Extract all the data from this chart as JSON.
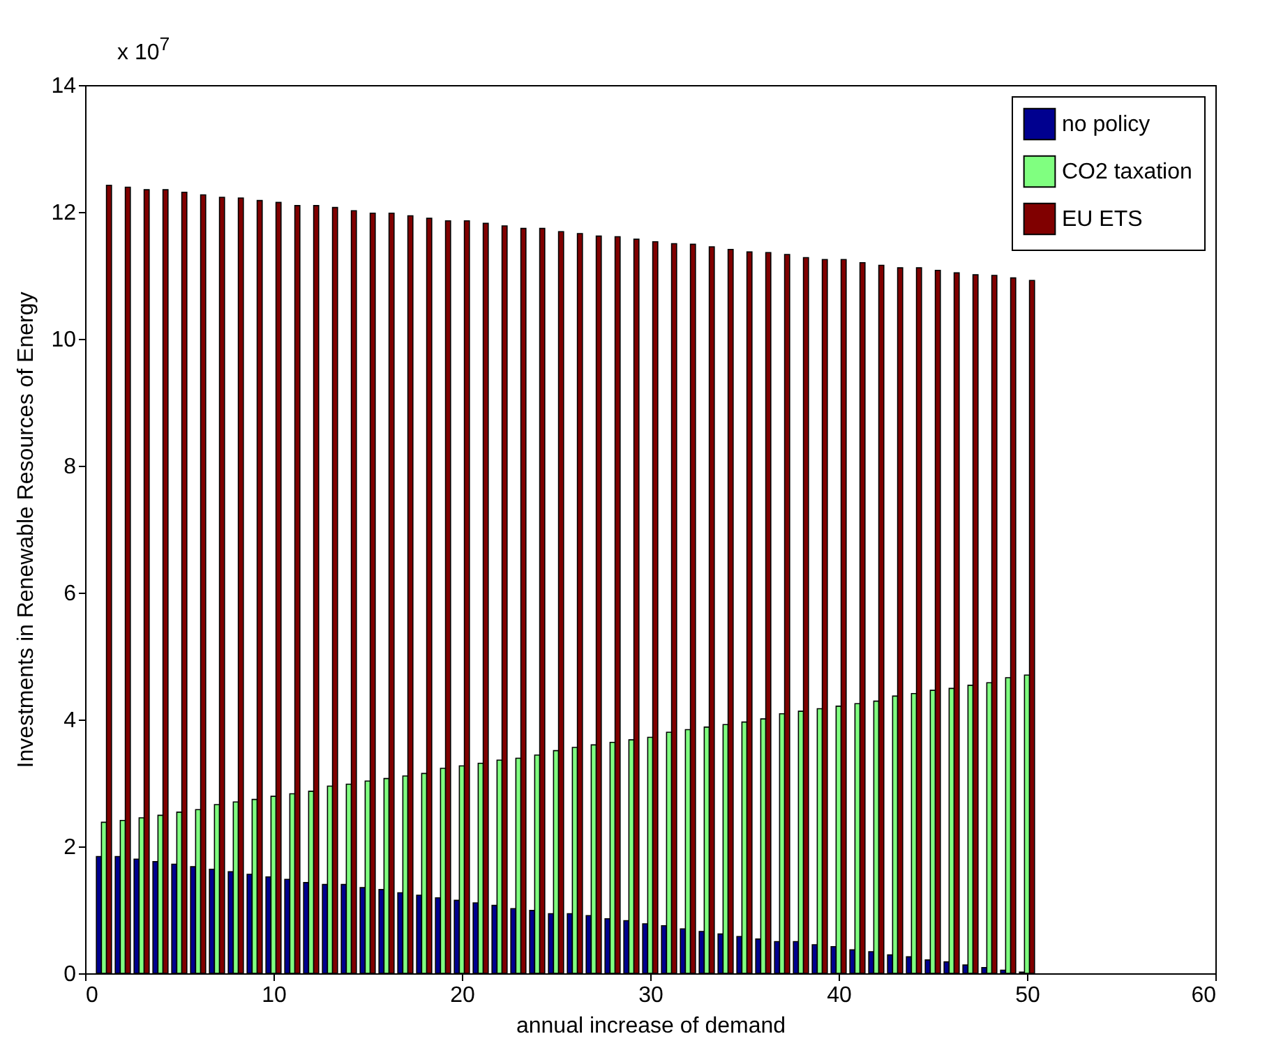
{
  "chart_data": {
    "type": "bar",
    "xlabel": "annual increase of demand",
    "ylabel": "Investments in Renewable Resources of Energy",
    "annotations": [
      "x 10$^{7}$"
    ],
    "x": [
      1,
      2,
      3,
      4,
      5,
      6,
      7,
      8,
      9,
      10,
      11,
      12,
      13,
      14,
      15,
      16,
      17,
      18,
      19,
      20,
      21,
      22,
      23,
      24,
      25,
      26,
      27,
      28,
      29,
      30,
      31,
      32,
      33,
      34,
      35,
      36,
      37,
      38,
      39,
      40,
      41,
      42,
      43,
      44,
      45,
      46,
      47,
      48,
      49,
      50
    ],
    "series": [
      {
        "name": "no policy",
        "color": "#00008f",
        "values": [
          1.84,
          1.84,
          1.8,
          1.76,
          1.72,
          1.68,
          1.64,
          1.6,
          1.56,
          1.52,
          1.48,
          1.43,
          1.4,
          1.4,
          1.35,
          1.32,
          1.27,
          1.23,
          1.19,
          1.15,
          1.11,
          1.07,
          1.02,
          0.99,
          0.94,
          0.94,
          0.91,
          0.86,
          0.83,
          0.78,
          0.75,
          0.7,
          0.66,
          0.62,
          0.58,
          0.54,
          0.5,
          0.5,
          0.45,
          0.42,
          0.37,
          0.34,
          0.29,
          0.26,
          0.21,
          0.18,
          0.13,
          0.09,
          0.05,
          0.02
        ]
      },
      {
        "name": "CO2 taxation",
        "color": "#80ff80",
        "values": [
          2.38,
          2.41,
          2.45,
          2.49,
          2.54,
          2.58,
          2.66,
          2.7,
          2.74,
          2.79,
          2.83,
          2.87,
          2.95,
          2.98,
          3.03,
          3.07,
          3.11,
          3.15,
          3.23,
          3.27,
          3.31,
          3.36,
          3.39,
          3.44,
          3.51,
          3.56,
          3.6,
          3.64,
          3.68,
          3.72,
          3.8,
          3.84,
          3.88,
          3.92,
          3.96,
          4.01,
          4.09,
          4.13,
          4.17,
          4.21,
          4.25,
          4.29,
          4.37,
          4.41,
          4.46,
          4.49,
          4.54,
          4.58,
          4.66,
          4.7
        ]
      },
      {
        "name": "EU ETS",
        "color": "#800000",
        "values": [
          12.42,
          12.39,
          12.35,
          12.35,
          12.31,
          12.27,
          12.23,
          12.22,
          12.18,
          12.15,
          12.1,
          12.1,
          12.07,
          12.02,
          11.98,
          11.98,
          11.94,
          11.9,
          11.86,
          11.86,
          11.82,
          11.78,
          11.74,
          11.74,
          11.69,
          11.66,
          11.62,
          11.61,
          11.57,
          11.53,
          11.5,
          11.49,
          11.45,
          11.41,
          11.37,
          11.36,
          11.33,
          11.28,
          11.25,
          11.25,
          11.2,
          11.16,
          11.12,
          11.12,
          11.08,
          11.04,
          11.01,
          11.0,
          10.96,
          10.92
        ]
      }
    ],
    "xlim": [
      0,
      60
    ],
    "xticks": [
      0,
      10,
      20,
      30,
      40,
      50,
      60
    ],
    "ylim": [
      0,
      14
    ],
    "yticks": [
      0,
      2,
      4,
      6,
      8,
      10,
      12,
      14
    ],
    "legend": "top right"
  }
}
